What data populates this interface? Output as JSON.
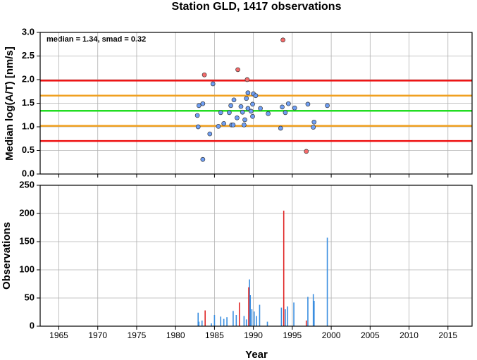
{
  "chart_data": [
    {
      "type": "scatter",
      "title": "Station GLD, 1417 observations",
      "ylabel": "Median log(A/T) [nm/s]",
      "annotation": "median = 1.34, smad = 0.32",
      "xlim": [
        1962.6,
        2018.1
      ],
      "xticks": [
        1965,
        1970,
        1975,
        1980,
        1985,
        1990,
        1995,
        2000,
        2005,
        2010,
        2015
      ],
      "ylim": [
        0,
        3
      ],
      "yticks": [
        {
          "value": 0,
          "label": "0.0"
        },
        {
          "value": 0.5,
          "label": "0.5"
        },
        {
          "value": 1,
          "label": "1.0"
        },
        {
          "value": 1.5,
          "label": "1.5"
        },
        {
          "value": 2,
          "label": "2.0"
        },
        {
          "value": 2.5,
          "label": "2.5"
        },
        {
          "value": 3,
          "label": "3.0"
        }
      ],
      "grid": true,
      "reference_lines": [
        {
          "value": 1.98,
          "color": "#ee1111"
        },
        {
          "value": 1.66,
          "color": "#f0a020"
        },
        {
          "value": 1.34,
          "color": "#22dd22"
        },
        {
          "value": 1.02,
          "color": "#f0a020"
        },
        {
          "value": 0.7,
          "color": "#ee1111"
        }
      ],
      "series": [
        {
          "color": "#6f9ff5",
          "x": [
            1982.8,
            1982.9,
            1983.0,
            1983.5,
            1983.5,
            1984.4,
            1984.8,
            1985.5,
            1985.8,
            1986.2,
            1986.9,
            1987.1,
            1987.2,
            1987.4,
            1987.5,
            1987.9,
            1988.4,
            1988.6,
            1988.8,
            1988.9,
            1989.1,
            1989.3,
            1989.3,
            1989.7,
            1989.9,
            1989.9,
            1990.0,
            1990.3,
            1990.9,
            1991.9,
            1993.5,
            1993.7,
            1994.1,
            1994.5,
            1995.3,
            1997.0,
            1997.7,
            1997.8,
            1999.5
          ],
          "values": [
            1.24,
            1.0,
            1.45,
            1.49,
            0.31,
            0.85,
            1.91,
            1.01,
            1.3,
            1.07,
            1.3,
            1.45,
            1.04,
            1.04,
            1.57,
            1.19,
            1.43,
            1.31,
            1.04,
            1.15,
            1.6,
            1.72,
            1.39,
            1.33,
            1.22,
            1.48,
            1.7,
            1.66,
            1.39,
            1.28,
            0.97,
            1.42,
            1.3,
            1.49,
            1.4,
            1.48,
            0.99,
            1.1,
            1.45
          ]
        },
        {
          "color": "#f56a6a",
          "x": [
            1983.7,
            1988.0,
            1989.2,
            1993.8,
            1996.8
          ],
          "values": [
            2.1,
            2.21,
            2.0,
            2.84,
            0.48
          ]
        }
      ]
    },
    {
      "type": "bar",
      "ylabel": "Observations",
      "xlabel": "Year",
      "xlim": [
        1962.6,
        2018.1
      ],
      "xticks": [
        1965,
        1970,
        1975,
        1980,
        1985,
        1990,
        1995,
        2000,
        2005,
        2010,
        2015
      ],
      "ylim": [
        0,
        250
      ],
      "yticks": [
        0,
        50,
        100,
        150,
        200,
        250
      ],
      "grid": true,
      "series": [
        {
          "color": "#3a8ee0",
          "x": [
            1982.9,
            1983.0,
            1983.4,
            1984.6,
            1985.0,
            1985.8,
            1986.2,
            1986.6,
            1987.4,
            1987.8,
            1988.8,
            1989.1,
            1989.5,
            1989.6,
            1989.8,
            1990.1,
            1990.4,
            1990.8,
            1991.8,
            1993.6,
            1994.1,
            1994.4,
            1995.2,
            1997.0,
            1997.7,
            1997.8,
            1999.5
          ],
          "values": [
            24,
            8,
            10,
            5,
            20,
            17,
            13,
            16,
            27,
            20,
            18,
            12,
            83,
            55,
            30,
            26,
            18,
            38,
            8,
            33,
            30,
            35,
            42,
            52,
            57,
            45,
            157
          ]
        },
        {
          "color": "#e02828",
          "x": [
            1983.8,
            1988.2,
            1989.4,
            1993.9,
            1996.8
          ],
          "values": [
            28,
            42,
            69,
            205,
            10
          ]
        }
      ]
    }
  ]
}
